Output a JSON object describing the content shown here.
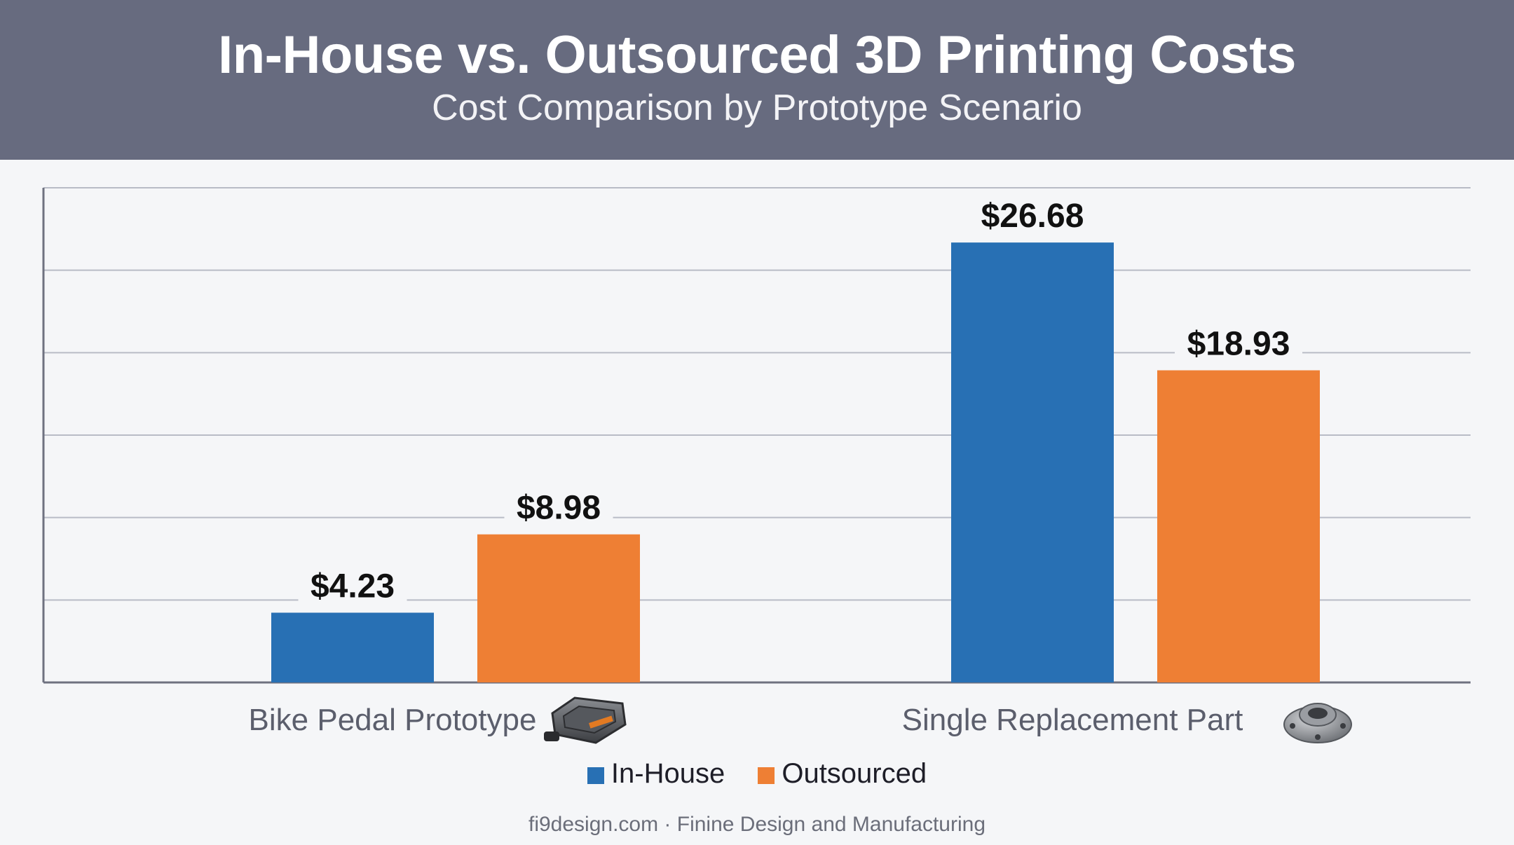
{
  "header": {
    "title": "In-House vs. Outsourced 3D Printing Costs",
    "subtitle": "Cost Comparison by Prototype Scenario"
  },
  "chart_data": {
    "type": "bar",
    "title": "In-House vs. Outsourced 3D Printing Costs",
    "subtitle": "Cost Comparison by Prototype Scenario",
    "categories": [
      "Bike Pedal Prototype",
      "Single Replacement Part"
    ],
    "category_icons": [
      "bike-pedal-icon",
      "flange-part-icon"
    ],
    "series": [
      {
        "name": "In-House",
        "values": [
          4.23,
          26.68
        ],
        "labels": [
          "$4.23",
          "$26.68"
        ],
        "color": "#2870b4"
      },
      {
        "name": "Outsourced",
        "values": [
          8.98,
          18.93
        ],
        "labels": [
          "$8.98",
          "$18.93"
        ],
        "color": "#ee7f34"
      }
    ],
    "xlabel": "",
    "ylabel": "",
    "ylim": [
      0,
      30
    ],
    "grid": true,
    "legend": "bottom-center"
  },
  "legend": {
    "items": [
      {
        "label": "In-House",
        "color": "#2870b4"
      },
      {
        "label": "Outsourced",
        "color": "#ee7f34"
      }
    ]
  },
  "footer": {
    "text": "fi9design.com · Finine Design and Manufacturing"
  },
  "colors": {
    "header_bg": "#676b7f",
    "in_house": "#2870b4",
    "outsourced": "#ee7f34",
    "grid": "#b9bcc6",
    "axis": "#6e7180"
  }
}
